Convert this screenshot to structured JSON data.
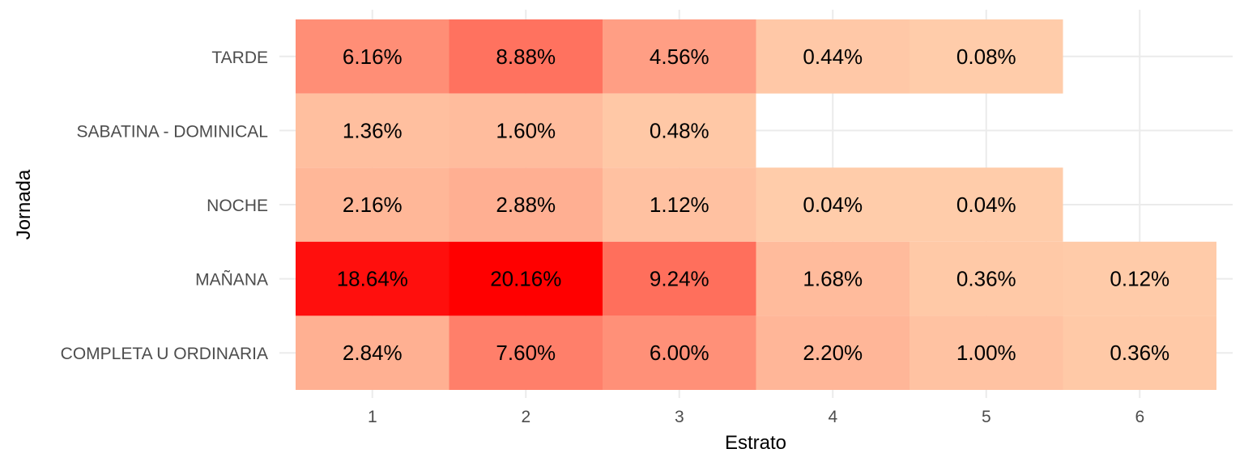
{
  "chart_data": {
    "type": "heatmap",
    "title": "",
    "xlabel": "Estrato",
    "ylabel": "Jornada",
    "x_categories": [
      "1",
      "2",
      "3",
      "4",
      "5",
      "6"
    ],
    "y_categories": [
      "COMPLETA U ORDINARIA",
      "MAÑANA",
      "NOCHE",
      "SABATINA - DOMINICAL",
      "TARDE"
    ],
    "cells": [
      {
        "x": "1",
        "y": "TARDE",
        "value": 6.16,
        "label": "6.16%"
      },
      {
        "x": "2",
        "y": "TARDE",
        "value": 8.88,
        "label": "8.88%"
      },
      {
        "x": "3",
        "y": "TARDE",
        "value": 4.56,
        "label": "4.56%"
      },
      {
        "x": "4",
        "y": "TARDE",
        "value": 0.44,
        "label": "0.44%"
      },
      {
        "x": "5",
        "y": "TARDE",
        "value": 0.08,
        "label": "0.08%"
      },
      {
        "x": "1",
        "y": "SABATINA - DOMINICAL",
        "value": 1.36,
        "label": "1.36%"
      },
      {
        "x": "2",
        "y": "SABATINA - DOMINICAL",
        "value": 1.6,
        "label": "1.60%"
      },
      {
        "x": "3",
        "y": "SABATINA - DOMINICAL",
        "value": 0.48,
        "label": "0.48%"
      },
      {
        "x": "1",
        "y": "NOCHE",
        "value": 2.16,
        "label": "2.16%"
      },
      {
        "x": "2",
        "y": "NOCHE",
        "value": 2.88,
        "label": "2.88%"
      },
      {
        "x": "3",
        "y": "NOCHE",
        "value": 1.12,
        "label": "1.12%"
      },
      {
        "x": "4",
        "y": "NOCHE",
        "value": 0.04,
        "label": "0.04%"
      },
      {
        "x": "5",
        "y": "NOCHE",
        "value": 0.04,
        "label": "0.04%"
      },
      {
        "x": "1",
        "y": "MAÑANA",
        "value": 18.64,
        "label": "18.64%"
      },
      {
        "x": "2",
        "y": "MAÑANA",
        "value": 20.16,
        "label": "20.16%"
      },
      {
        "x": "3",
        "y": "MAÑANA",
        "value": 9.24,
        "label": "9.24%"
      },
      {
        "x": "4",
        "y": "MAÑANA",
        "value": 1.68,
        "label": "1.68%"
      },
      {
        "x": "5",
        "y": "MAÑANA",
        "value": 0.36,
        "label": "0.36%"
      },
      {
        "x": "6",
        "y": "MAÑANA",
        "value": 0.12,
        "label": "0.12%"
      },
      {
        "x": "1",
        "y": "COMPLETA U ORDINARIA",
        "value": 2.84,
        "label": "2.84%"
      },
      {
        "x": "2",
        "y": "COMPLETA U ORDINARIA",
        "value": 7.6,
        "label": "7.60%"
      },
      {
        "x": "3",
        "y": "COMPLETA U ORDINARIA",
        "value": 6.0,
        "label": "6.00%"
      },
      {
        "x": "4",
        "y": "COMPLETA U ORDINARIA",
        "value": 2.2,
        "label": "2.20%"
      },
      {
        "x": "5",
        "y": "COMPLETA U ORDINARIA",
        "value": 1.0,
        "label": "1.00%"
      },
      {
        "x": "6",
        "y": "COMPLETA U ORDINARIA",
        "value": 0.36,
        "label": "0.36%"
      }
    ],
    "color_scale": {
      "low": "#ffccaa",
      "high": "#ff0000"
    },
    "legend": "none",
    "grid": true
  }
}
